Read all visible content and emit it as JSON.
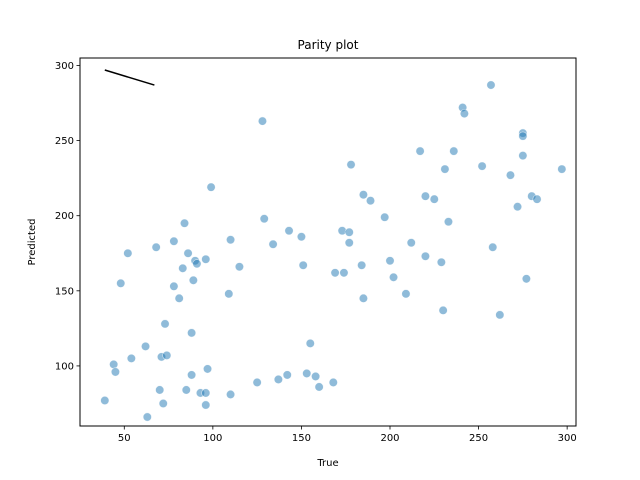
{
  "chart_data": {
    "type": "scatter",
    "title": "Parity plot",
    "xlabel": "True",
    "ylabel": "Predicted",
    "xlim": [
      25,
      305
    ],
    "ylim": [
      60,
      305
    ],
    "xticks": [
      50,
      100,
      150,
      200,
      250,
      300
    ],
    "yticks": [
      100,
      150,
      200,
      250,
      300
    ],
    "grid": false,
    "point_color": "#1f77b4",
    "point_opacity": 0.5,
    "line_color": "#000000",
    "line": {
      "x": [
        39,
        67
      ],
      "y": [
        297,
        287
      ]
    },
    "points": [
      [
        39,
        77
      ],
      [
        44,
        101
      ],
      [
        45,
        96
      ],
      [
        48,
        155
      ],
      [
        52,
        175
      ],
      [
        54,
        105
      ],
      [
        62,
        113
      ],
      [
        63,
        66
      ],
      [
        68,
        179
      ],
      [
        70,
        84
      ],
      [
        71,
        106
      ],
      [
        72,
        75
      ],
      [
        73,
        128
      ],
      [
        74,
        107
      ],
      [
        78,
        183
      ],
      [
        78,
        153
      ],
      [
        81,
        145
      ],
      [
        83,
        165
      ],
      [
        84,
        195
      ],
      [
        85,
        84
      ],
      [
        86,
        175
      ],
      [
        88,
        122
      ],
      [
        88,
        94
      ],
      [
        89,
        157
      ],
      [
        90,
        170
      ],
      [
        91,
        168
      ],
      [
        93,
        82
      ],
      [
        96,
        82
      ],
      [
        96,
        74
      ],
      [
        96,
        171
      ],
      [
        97,
        98
      ],
      [
        99,
        219
      ],
      [
        109,
        148
      ],
      [
        110,
        184
      ],
      [
        110,
        81
      ],
      [
        115,
        166
      ],
      [
        125,
        89
      ],
      [
        128,
        263
      ],
      [
        129,
        198
      ],
      [
        134,
        181
      ],
      [
        137,
        91
      ],
      [
        142,
        94
      ],
      [
        143,
        190
      ],
      [
        150,
        186
      ],
      [
        151,
        167
      ],
      [
        153,
        95
      ],
      [
        155,
        115
      ],
      [
        158,
        93
      ],
      [
        160,
        86
      ],
      [
        168,
        89
      ],
      [
        169,
        162
      ],
      [
        173,
        190
      ],
      [
        174,
        162
      ],
      [
        177,
        189
      ],
      [
        177,
        182
      ],
      [
        178,
        234
      ],
      [
        184,
        167
      ],
      [
        185,
        214
      ],
      [
        185,
        145
      ],
      [
        189,
        210
      ],
      [
        197,
        199
      ],
      [
        200,
        170
      ],
      [
        202,
        159
      ],
      [
        209,
        148
      ],
      [
        212,
        182
      ],
      [
        217,
        243
      ],
      [
        220,
        213
      ],
      [
        220,
        173
      ],
      [
        225,
        211
      ],
      [
        229,
        169
      ],
      [
        230,
        137
      ],
      [
        231,
        231
      ],
      [
        233,
        196
      ],
      [
        236,
        243
      ],
      [
        241,
        272
      ],
      [
        242,
        268
      ],
      [
        252,
        233
      ],
      [
        257,
        287
      ],
      [
        258,
        179
      ],
      [
        262,
        134
      ],
      [
        268,
        227
      ],
      [
        272,
        206
      ],
      [
        275,
        255
      ],
      [
        275,
        253
      ],
      [
        275,
        240
      ],
      [
        277,
        158
      ],
      [
        280,
        213
      ],
      [
        283,
        211
      ],
      [
        297,
        231
      ]
    ]
  }
}
